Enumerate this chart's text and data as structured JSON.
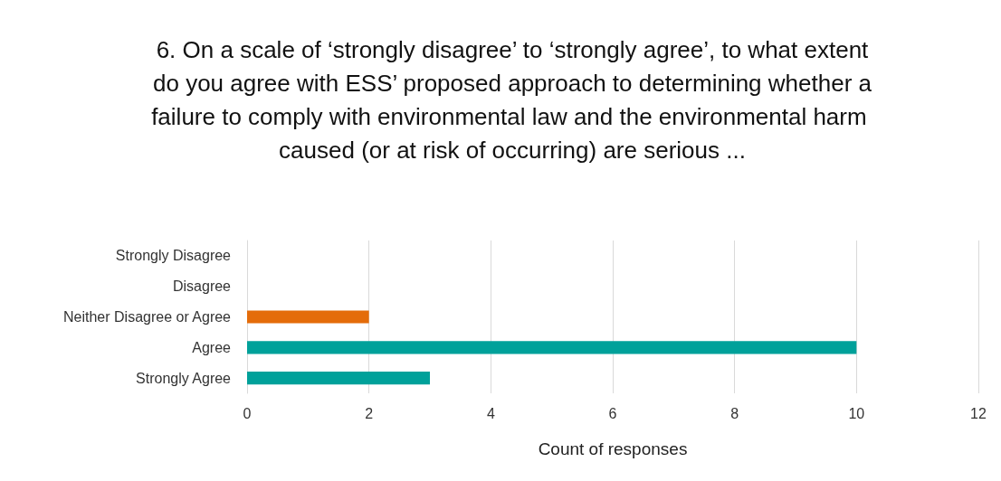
{
  "chart_data": {
    "type": "bar",
    "orientation": "horizontal",
    "title": "6. On a scale of ‘strongly disagree’ to ‘strongly agree’, to what extent do you agree with ESS’ proposed approach to determining whether a failure to comply with environmental law and the environmental harm caused (or at risk of occurring) are serious ...",
    "categories": [
      "Strongly Disagree",
      "Disagree",
      "Neither Disagree or Agree",
      "Agree",
      "Strongly Agree"
    ],
    "values": [
      0,
      0,
      2,
      10,
      3
    ],
    "colors": [
      "#e46c0a",
      "#e46c0a",
      "#e46c0a",
      "#00a19a",
      "#00a19a"
    ],
    "xlabel": "Count of responses",
    "xlim": [
      0,
      12
    ],
    "xticks": [
      0,
      2,
      4,
      6,
      8,
      10,
      12
    ],
    "grid": "x"
  }
}
